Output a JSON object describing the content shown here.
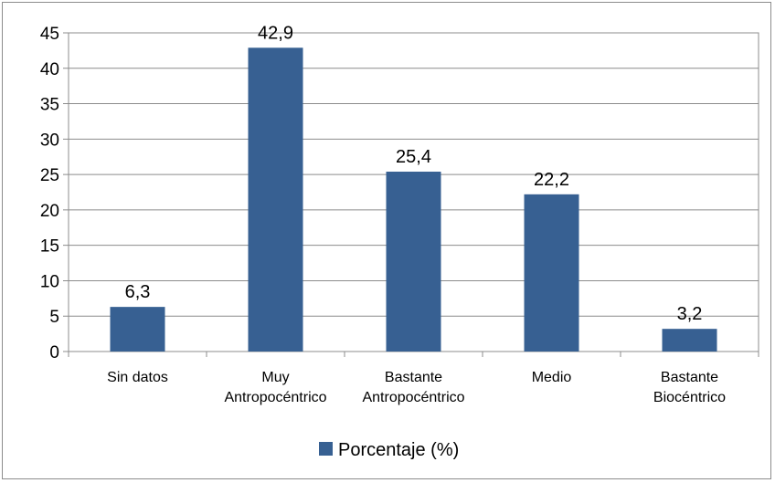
{
  "chart_data": {
    "type": "bar",
    "categories": [
      [
        "Sin datos"
      ],
      [
        "Muy",
        "Antropocéntrico"
      ],
      [
        "Bastante",
        "Antropocéntrico"
      ],
      [
        "Medio"
      ],
      [
        "Bastante",
        "Biocéntrico"
      ]
    ],
    "series": [
      {
        "name": "Porcentaje (%)",
        "values": [
          6.3,
          42.9,
          25.4,
          22.2,
          3.2
        ],
        "data_labels": [
          "6,3",
          "42,9",
          "25,4",
          "22,2",
          "3,2"
        ]
      }
    ],
    "ylim": [
      0,
      45
    ],
    "yticks": [
      0,
      5,
      10,
      15,
      20,
      25,
      30,
      35,
      40,
      45
    ],
    "grid": true,
    "legend_position": "bottom",
    "bar_color": "#376092"
  }
}
